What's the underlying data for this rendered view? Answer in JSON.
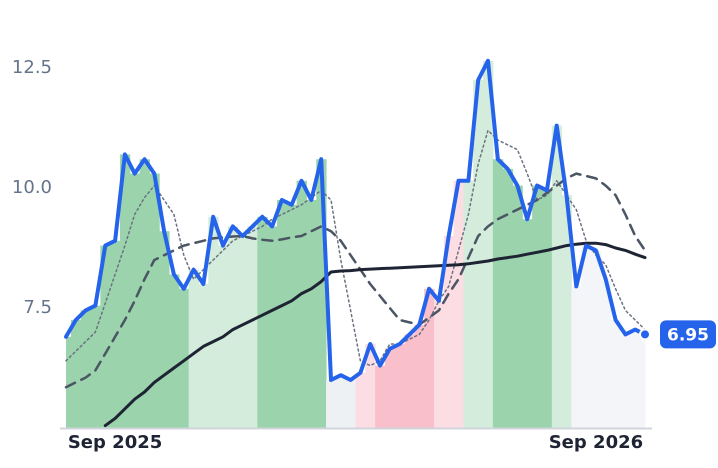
{
  "chart_data": {
    "type": "line",
    "categories": [
      null,
      null,
      null,
      null,
      null,
      "Sep 2025",
      null,
      null,
      null,
      null,
      null,
      null,
      null,
      null,
      null,
      null,
      null,
      null,
      null,
      null,
      null,
      null,
      null,
      null,
      null,
      null,
      null,
      null,
      null,
      null,
      null,
      null,
      null,
      null,
      null,
      null,
      null,
      null,
      null,
      null,
      null,
      null,
      null,
      null,
      null,
      null,
      null,
      null,
      null,
      null,
      null,
      null,
      null,
      null,
      "Sep 2026",
      null,
      null,
      null,
      null,
      null
    ],
    "ylim": [
      5.0,
      13.5
    ],
    "yticks": [
      7.5,
      {
        "value": 10,
        "label": "10.0"
      },
      12.5
    ],
    "grid": false,
    "fill_colors": [
      "#9ad3ac",
      "#9ad3ac",
      "#9ad3ac",
      "#9ad3ac",
      "#9ad3ac",
      "#9ad3ac",
      "#9ad3ac",
      "#9ad3ac",
      "#9ad3ac",
      "#9ad3ac",
      "#9ad3ac",
      "#9ad3ac",
      "#9ad3ac",
      "#d3ecdb",
      "#d3ecdb",
      "#d3ecdb",
      "#d3ecdb",
      "#d3ecdb",
      "#d3ecdb",
      "#d3ecdb",
      "#9ad3ac",
      "#9ad3ac",
      "#9ad3ac",
      "#9ad3ac",
      "#9ad3ac",
      "#9ad3ac",
      "#9ad3ac",
      "#eef1f4",
      "#eef1f4",
      "#eef1f4",
      "#fcdde3",
      "#fcdde3",
      "#f9bfcb",
      "#f9bfcb",
      "#f9bfcb",
      "#f9bfcb",
      "#f9bfcb",
      "#f9bfcb",
      "#fcdde3",
      "#fcdde3",
      "#fcdde3",
      "#d3ecdb",
      "#d3ecdb",
      "#d3ecdb",
      "#9ad3ac",
      "#9ad3ac",
      "#9ad3ac",
      "#9ad3ac",
      "#9ad3ac",
      "#9ad3ac",
      "#d3ecdb",
      "#d3ecdb",
      "#f3f5f8",
      "#f3f5f8",
      "#f3f5f8",
      "#f3f5f8",
      "#f3f5f8",
      "#f3f5f8",
      "#f3f5f8",
      "#f3f5f8"
    ],
    "series": [
      {
        "color": "#2563eb",
        "dash": "solid",
        "width": 4,
        "fill": true,
        "values": [
          6.9,
          7.25,
          7.45,
          7.55,
          8.8,
          8.9,
          10.7,
          10.3,
          10.6,
          10.3,
          9.1,
          8.2,
          7.9,
          8.3,
          8.0,
          9.4,
          8.8,
          9.2,
          9.0,
          9.2,
          9.4,
          9.2,
          9.75,
          9.65,
          10.15,
          9.75,
          10.6,
          6.0,
          6.1,
          6.0,
          6.15,
          6.75,
          6.3,
          6.65,
          6.75,
          6.95,
          7.15,
          7.9,
          7.65,
          9.0,
          10.15,
          10.15,
          12.25,
          12.65,
          10.6,
          10.4,
          10.05,
          9.35,
          10.05,
          9.95,
          11.3,
          9.85,
          7.95,
          8.8,
          8.7,
          8.1,
          7.25,
          6.95,
          7.05,
          6.95
        ]
      },
      {
        "color": "#1e2433",
        "dash": "solid",
        "width": 3,
        "fill": false,
        "values": [
          null,
          null,
          null,
          null,
          5.05,
          5.2,
          5.4,
          5.6,
          5.75,
          5.95,
          6.1,
          6.25,
          6.4,
          6.55,
          6.7,
          6.8,
          6.9,
          7.05,
          7.15,
          7.25,
          7.35,
          7.45,
          7.55,
          7.65,
          7.8,
          7.9,
          8.05,
          8.25,
          8.27,
          8.28,
          8.3,
          8.31,
          8.32,
          8.33,
          8.34,
          8.35,
          8.36,
          8.37,
          8.38,
          8.39,
          8.4,
          8.42,
          8.45,
          8.48,
          8.52,
          8.55,
          8.58,
          8.62,
          8.66,
          8.7,
          8.75,
          8.8,
          8.83,
          8.85,
          8.85,
          8.82,
          8.75,
          8.7,
          8.62,
          8.55
        ]
      },
      {
        "color": "#4b5563",
        "dash": "dashed",
        "width": 2.5,
        "fill": false,
        "values": [
          5.85,
          5.95,
          6.05,
          6.2,
          6.55,
          6.9,
          7.25,
          7.65,
          8.1,
          8.5,
          8.6,
          8.7,
          8.8,
          8.85,
          8.9,
          8.95,
          8.97,
          8.99,
          9.0,
          8.95,
          8.92,
          8.9,
          8.93,
          8.97,
          9.0,
          9.1,
          9.2,
          9.1,
          8.9,
          8.6,
          8.3,
          8.0,
          7.75,
          7.5,
          7.25,
          7.2,
          7.15,
          7.3,
          7.45,
          7.8,
          8.1,
          8.55,
          9.0,
          9.2,
          9.35,
          9.45,
          9.55,
          9.65,
          9.75,
          9.9,
          10.05,
          10.2,
          10.3,
          10.25,
          10.2,
          10.05,
          9.85,
          9.45,
          9.0,
          8.7
        ]
      },
      {
        "color": "#6b7280",
        "dash": "dotted",
        "width": 1.5,
        "fill": false,
        "values": [
          6.4,
          6.6,
          6.8,
          7.0,
          7.6,
          8.2,
          8.8,
          9.45,
          9.8,
          10.05,
          9.75,
          9.45,
          8.6,
          8.1,
          8.3,
          8.5,
          8.7,
          8.9,
          9.0,
          9.1,
          9.2,
          9.35,
          9.45,
          9.55,
          9.65,
          9.8,
          9.95,
          9.75,
          8.5,
          7.45,
          6.4,
          6.3,
          6.4,
          6.75,
          6.75,
          6.85,
          6.95,
          7.25,
          7.65,
          7.95,
          8.7,
          9.45,
          10.5,
          11.2,
          11.0,
          10.9,
          10.8,
          10.3,
          9.75,
          9.85,
          10.15,
          9.85,
          9.55,
          8.9,
          8.6,
          8.4,
          7.9,
          7.45,
          7.25,
          7.05
        ]
      }
    ]
  }
}
